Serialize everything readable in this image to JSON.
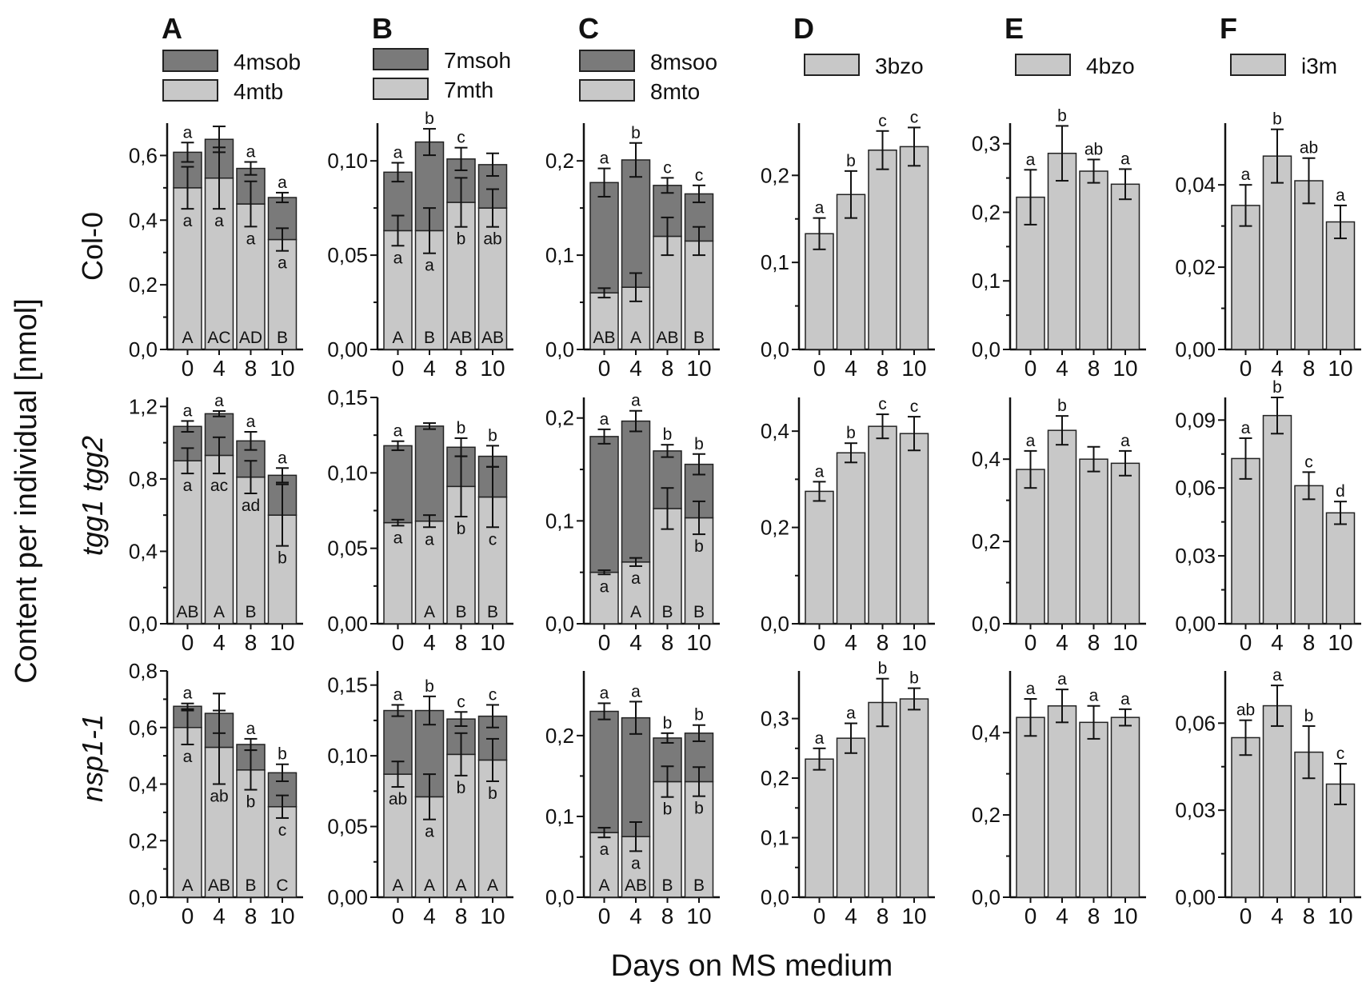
{
  "figure": {
    "ylabel": "Content per individual [nmol]",
    "xlabel": "Days on MS medium",
    "rows": [
      "Col-0",
      "tgg1 tgg2",
      "nsp1-1"
    ],
    "columns": [
      {
        "letter": "A",
        "legend": [
          {
            "label": "4msob",
            "color": "#7a7a7a"
          },
          {
            "label": "4mtb",
            "color": "#c8c8c8"
          }
        ]
      },
      {
        "letter": "B",
        "legend": [
          {
            "label": "7msoh",
            "color": "#7a7a7a"
          },
          {
            "label": "7mth",
            "color": "#c8c8c8"
          }
        ]
      },
      {
        "letter": "C",
        "legend": [
          {
            "label": "8msoo",
            "color": "#7a7a7a"
          },
          {
            "label": "8mto",
            "color": "#c8c8c8"
          }
        ]
      },
      {
        "letter": "D",
        "legend": [
          {
            "label": "3bzo",
            "color": "#c8c8c8"
          }
        ]
      },
      {
        "letter": "E",
        "legend": [
          {
            "label": "4bzo",
            "color": "#c8c8c8"
          }
        ]
      },
      {
        "letter": "F",
        "legend": [
          {
            "label": "i3m",
            "color": "#c8c8c8"
          }
        ]
      }
    ]
  },
  "chart_data": {
    "type": "bar",
    "categories": [
      "0",
      "4",
      "8",
      "10"
    ],
    "panels": [
      {
        "row": 0,
        "col": 0,
        "stacked": true,
        "ylim": [
          0,
          0.7
        ],
        "ticks": [
          0,
          0.2,
          0.4,
          0.6
        ],
        "dp": 1,
        "light": [
          0.5,
          0.53,
          0.45,
          0.34
        ],
        "errL": [
          0.065,
          0.095,
          0.07,
          0.035
        ],
        "total": [
          0.61,
          0.65,
          0.56,
          0.47
        ],
        "errT": [
          0.03,
          0.04,
          0.02,
          0.015
        ],
        "top": [
          "a",
          "",
          "a",
          "a"
        ],
        "lower": [
          "a",
          "a",
          "a",
          "a"
        ],
        "bottom": [
          "A",
          "AC",
          "AD",
          "B"
        ]
      },
      {
        "row": 0,
        "col": 1,
        "stacked": true,
        "ylim": [
          0,
          0.12
        ],
        "ticks": [
          0,
          0.05,
          0.1
        ],
        "dp": 2,
        "light": [
          0.063,
          0.063,
          0.078,
          0.075
        ],
        "errL": [
          0.008,
          0.012,
          0.013,
          0.01
        ],
        "total": [
          0.094,
          0.11,
          0.101,
          0.098
        ],
        "errT": [
          0.005,
          0.007,
          0.006,
          0.006
        ],
        "top": [
          "a",
          "b",
          "c",
          ""
        ],
        "lower": [
          "a",
          "a",
          "b",
          "ab"
        ],
        "bottom": [
          "A",
          "B",
          "AB",
          "AB"
        ]
      },
      {
        "row": 0,
        "col": 2,
        "stacked": true,
        "ylim": [
          0,
          0.24
        ],
        "ticks": [
          0,
          0.1,
          0.2
        ],
        "dp": 1,
        "light": [
          0.06,
          0.066,
          0.12,
          0.115
        ],
        "errL": [
          0.005,
          0.015,
          0.02,
          0.015
        ],
        "total": [
          0.177,
          0.201,
          0.174,
          0.165
        ],
        "errT": [
          0.015,
          0.018,
          0.008,
          0.009
        ],
        "top": [
          "a",
          "b",
          "c",
          "c"
        ],
        "lower": [
          "",
          "",
          "",
          ""
        ],
        "bottom": [
          "AB",
          "A",
          "AB",
          "B"
        ]
      },
      {
        "row": 0,
        "col": 3,
        "stacked": false,
        "ylim": [
          0,
          0.26
        ],
        "ticks": [
          0,
          0.1,
          0.2
        ],
        "dp": 1,
        "light": [
          0.133,
          0.178,
          0.229,
          0.233
        ],
        "errL": [
          0.018,
          0.027,
          0.022,
          0.022
        ],
        "top": [
          "a",
          "b",
          "c",
          "c"
        ]
      },
      {
        "row": 0,
        "col": 4,
        "stacked": false,
        "ylim": [
          0,
          0.33
        ],
        "ticks": [
          0,
          0.1,
          0.2,
          0.3
        ],
        "dp": 1,
        "light": [
          0.222,
          0.286,
          0.26,
          0.241
        ],
        "errL": [
          0.04,
          0.04,
          0.017,
          0.022
        ],
        "top": [
          "a",
          "b",
          "ab",
          "a"
        ]
      },
      {
        "row": 0,
        "col": 5,
        "stacked": false,
        "ylim": [
          0,
          0.055
        ],
        "ticks": [
          0,
          0.02,
          0.04
        ],
        "dp": 2,
        "light": [
          0.035,
          0.047,
          0.041,
          0.031
        ],
        "errL": [
          0.005,
          0.0065,
          0.0055,
          0.004
        ],
        "top": [
          "a",
          "b",
          "ab",
          "a"
        ]
      },
      {
        "row": 1,
        "col": 0,
        "stacked": true,
        "ylim": [
          0,
          1.25
        ],
        "ticks": [
          0,
          0.4,
          0.8,
          1.2
        ],
        "dp": 1,
        "light": [
          0.9,
          0.93,
          0.81,
          0.6
        ],
        "errL": [
          0.07,
          0.1,
          0.09,
          0.17
        ],
        "total": [
          1.09,
          1.16,
          1.01,
          0.82
        ],
        "errT": [
          0.03,
          0.015,
          0.05,
          0.04
        ],
        "top": [
          "a",
          "a",
          "a",
          "a"
        ],
        "lower": [
          "a",
          "ac",
          "ad",
          "b"
        ],
        "bottom": [
          "AB",
          "A",
          "B",
          ""
        ]
      },
      {
        "row": 1,
        "col": 1,
        "stacked": true,
        "ylim": [
          0,
          0.15
        ],
        "ticks": [
          0,
          0.05,
          0.1,
          0.15
        ],
        "dp": 2,
        "light": [
          0.067,
          0.068,
          0.091,
          0.084
        ],
        "errL": [
          0.002,
          0.004,
          0.02,
          0.02
        ],
        "total": [
          0.118,
          0.131,
          0.117,
          0.111
        ],
        "errT": [
          0.003,
          0.002,
          0.006,
          0.007
        ],
        "top": [
          "a",
          "",
          "b",
          "b"
        ],
        "lower": [
          "a",
          "a",
          "b",
          "c"
        ],
        "bottom": [
          "",
          "A",
          "B",
          "B"
        ]
      },
      {
        "row": 1,
        "col": 2,
        "stacked": true,
        "ylim": [
          0,
          0.22
        ],
        "ticks": [
          0,
          0.1,
          0.2
        ],
        "dp": 1,
        "light": [
          0.05,
          0.06,
          0.112,
          0.103
        ],
        "errL": [
          0.002,
          0.004,
          0.02,
          0.016
        ],
        "total": [
          0.182,
          0.197,
          0.168,
          0.155
        ],
        "errT": [
          0.007,
          0.01,
          0.006,
          0.01
        ],
        "top": [
          "a",
          "a",
          "b",
          "b"
        ],
        "lower": [
          "a",
          "a",
          "",
          "b"
        ],
        "bottom": [
          "",
          "A",
          "B",
          "B"
        ]
      },
      {
        "row": 1,
        "col": 3,
        "stacked": false,
        "ylim": [
          0,
          0.47
        ],
        "ticks": [
          0,
          0.2,
          0.4
        ],
        "dp": 1,
        "light": [
          0.275,
          0.355,
          0.41,
          0.395
        ],
        "errL": [
          0.02,
          0.02,
          0.025,
          0.035
        ],
        "top": [
          "a",
          "b",
          "c",
          "c"
        ]
      },
      {
        "row": 1,
        "col": 4,
        "stacked": false,
        "ylim": [
          0,
          0.55
        ],
        "ticks": [
          0,
          0.2,
          0.4
        ],
        "dp": 1,
        "light": [
          0.375,
          0.47,
          0.4,
          0.39
        ],
        "errL": [
          0.045,
          0.035,
          0.03,
          0.03
        ],
        "top": [
          "a",
          "b",
          "",
          "a"
        ]
      },
      {
        "row": 1,
        "col": 5,
        "stacked": false,
        "ylim": [
          0,
          0.1
        ],
        "ticks": [
          0,
          0.03,
          0.06,
          0.09
        ],
        "dp": 2,
        "light": [
          0.073,
          0.092,
          0.061,
          0.049
        ],
        "errL": [
          0.009,
          0.008,
          0.006,
          0.005
        ],
        "top": [
          "a",
          "b",
          "c",
          "d"
        ]
      },
      {
        "row": 2,
        "col": 0,
        "stacked": true,
        "ylim": [
          0,
          0.8
        ],
        "ticks": [
          0,
          0.2,
          0.4,
          0.6,
          0.8
        ],
        "dp": 1,
        "light": [
          0.6,
          0.53,
          0.45,
          0.32
        ],
        "errL": [
          0.06,
          0.13,
          0.07,
          0.04
        ],
        "total": [
          0.675,
          0.65,
          0.54,
          0.44
        ],
        "errT": [
          0.01,
          0.07,
          0.02,
          0.03
        ],
        "top": [
          "a",
          "",
          "a",
          "b"
        ],
        "lower": [
          "a",
          "ab",
          "b",
          "c"
        ],
        "bottom": [
          "A",
          "AB",
          "B",
          "C"
        ]
      },
      {
        "row": 2,
        "col": 1,
        "stacked": true,
        "ylim": [
          0,
          0.16
        ],
        "ticks": [
          0,
          0.05,
          0.1,
          0.15
        ],
        "dp": 2,
        "light": [
          0.087,
          0.071,
          0.101,
          0.097
        ],
        "errL": [
          0.009,
          0.016,
          0.015,
          0.015
        ],
        "total": [
          0.132,
          0.132,
          0.126,
          0.128
        ],
        "errT": [
          0.004,
          0.01,
          0.005,
          0.008
        ],
        "top": [
          "a",
          "b",
          "c",
          "c"
        ],
        "lower": [
          "ab",
          "a",
          "b",
          "b"
        ],
        "bottom": [
          "A",
          "A",
          "A",
          "A"
        ]
      },
      {
        "row": 2,
        "col": 2,
        "stacked": true,
        "ylim": [
          0,
          0.28
        ],
        "ticks": [
          0,
          0.1,
          0.2
        ],
        "dp": 1,
        "light": [
          0.08,
          0.075,
          0.143,
          0.143
        ],
        "errL": [
          0.006,
          0.018,
          0.019,
          0.018
        ],
        "total": [
          0.23,
          0.222,
          0.197,
          0.203
        ],
        "errT": [
          0.01,
          0.02,
          0.006,
          0.01
        ],
        "top": [
          "a",
          "a",
          "b",
          "b"
        ],
        "lower": [
          "a",
          "a",
          "b",
          "b"
        ],
        "bottom": [
          "A",
          "AB",
          "B",
          "B"
        ]
      },
      {
        "row": 2,
        "col": 3,
        "stacked": false,
        "ylim": [
          0,
          0.38
        ],
        "ticks": [
          0,
          0.1,
          0.2,
          0.3
        ],
        "dp": 1,
        "light": [
          0.232,
          0.267,
          0.327,
          0.333
        ],
        "errL": [
          0.018,
          0.025,
          0.04,
          0.018
        ],
        "top": [
          "a",
          "a",
          "b",
          "b"
        ]
      },
      {
        "row": 2,
        "col": 4,
        "stacked": false,
        "ylim": [
          0,
          0.55
        ],
        "ticks": [
          0,
          0.2,
          0.4
        ],
        "dp": 1,
        "light": [
          0.437,
          0.465,
          0.425,
          0.437
        ],
        "errL": [
          0.045,
          0.04,
          0.04,
          0.02
        ],
        "top": [
          "a",
          "a",
          "a",
          "a"
        ]
      },
      {
        "row": 2,
        "col": 5,
        "stacked": false,
        "ylim": [
          0,
          0.078
        ],
        "ticks": [
          0,
          0.03,
          0.06
        ],
        "dp": 2,
        "light": [
          0.055,
          0.066,
          0.05,
          0.039
        ],
        "errL": [
          0.006,
          0.007,
          0.009,
          0.007
        ],
        "top": [
          "ab",
          "a",
          "b",
          "c"
        ]
      }
    ]
  }
}
